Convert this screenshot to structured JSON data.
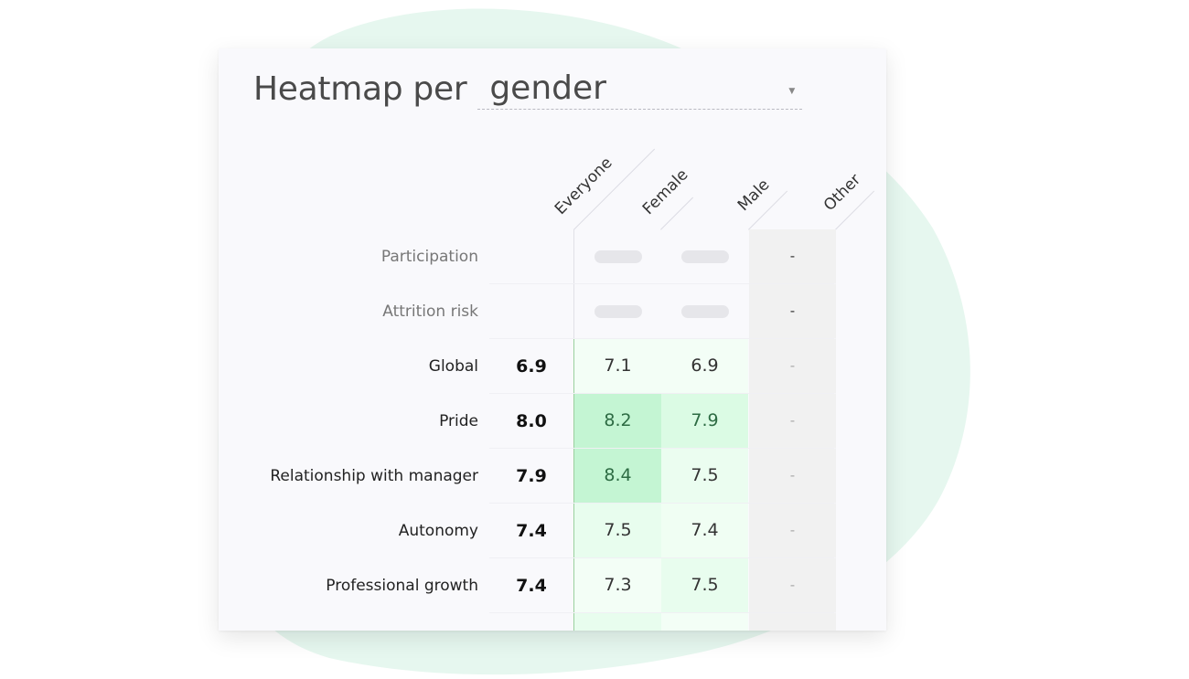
{
  "header": {
    "title": "Heatmap per",
    "group_select": {
      "value": "gender"
    }
  },
  "columns": [
    "Everyone",
    "Female",
    "Male",
    "Other"
  ],
  "rows": [
    {
      "label": "Participation",
      "everyone": "",
      "female": null,
      "male": null,
      "other": "-"
    },
    {
      "label": "Attrition risk",
      "everyone": "",
      "female": null,
      "male": null,
      "other": "-"
    },
    {
      "label": "Global",
      "everyone": "6.9",
      "female": "7.1",
      "male": "6.9",
      "other": "-"
    },
    {
      "label": "Pride",
      "everyone": "8.0",
      "female": "8.2",
      "male": "7.9",
      "other": "-"
    },
    {
      "label": "Relationship with manager",
      "everyone": "7.9",
      "female": "8.4",
      "male": "7.5",
      "other": "-"
    },
    {
      "label": "Autonomy",
      "everyone": "7.4",
      "female": "7.5",
      "male": "7.4",
      "other": "-"
    },
    {
      "label": "Professional growth",
      "everyone": "7.4",
      "female": "7.3",
      "male": "7.5",
      "other": "-"
    }
  ],
  "colors": {
    "blob": "#e6f7ef",
    "card_bg": "#f9f9fc",
    "heat_strong": "#c4f5d3",
    "heat_medium": "#dbfbe4",
    "heat_light": "#ebfdf0",
    "heat_faint": "#f3fef6",
    "other_col": "#f1f1f1"
  }
}
